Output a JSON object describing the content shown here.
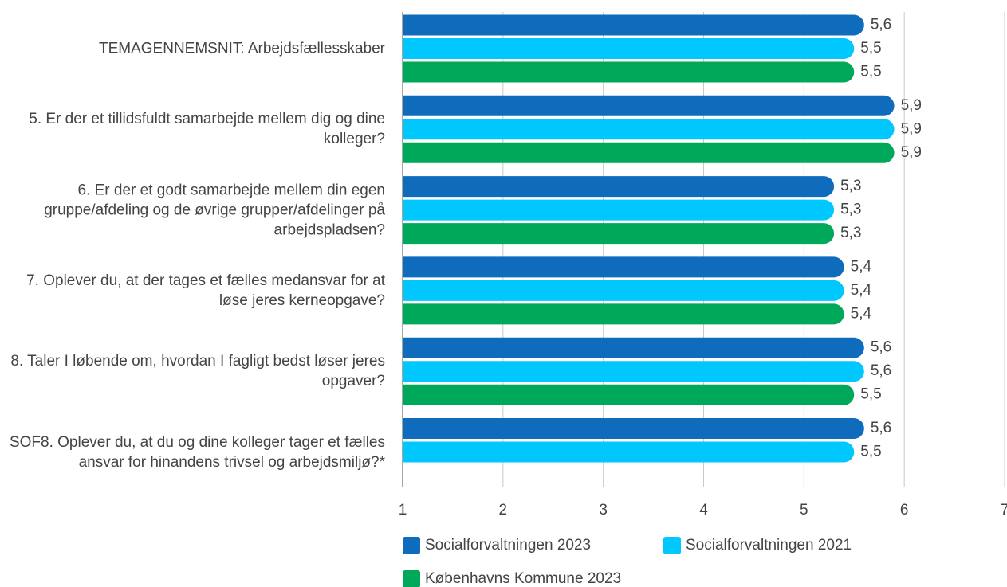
{
  "chart_data": {
    "type": "bar",
    "orientation": "horizontal",
    "categories": [
      "TEMAGENNEMSNIT: Arbejdsfællesskaber",
      "5. Er der et tillidsfuldt samarbejde mellem dig og dine kolleger?",
      "6. Er der et godt samarbejde mellem din egen gruppe/afdeling og de øvrige grupper/afdelinger på arbejdspladsen?",
      "7. Oplever du, at der tages et fælles medansvar for at løse jeres kerneopgave?",
      "8. Taler I løbende om, hvordan I fagligt bedst løser jeres opgaver?",
      "SOF8. Oplever du, at du og dine kolleger tager et fælles ansvar for hinandens trivsel og arbejdsmiljø?*"
    ],
    "series": [
      {
        "name": "Socialforvaltningen 2023",
        "color": "#0f6cbd",
        "values": [
          5.6,
          5.9,
          5.3,
          5.4,
          5.6,
          5.6
        ],
        "value_labels": [
          "5,6",
          "5,9",
          "5,3",
          "5,4",
          "5,6",
          "5,6"
        ]
      },
      {
        "name": "Socialforvaltningen 2021",
        "color": "#00c8ff",
        "values": [
          5.5,
          5.9,
          5.3,
          5.4,
          5.6,
          5.5
        ],
        "value_labels": [
          "5,5",
          "5,9",
          "5,3",
          "5,4",
          "5,6",
          "5,5"
        ]
      },
      {
        "name": "Københavns Kommune 2023",
        "color": "#00a859",
        "values": [
          5.5,
          5.9,
          5.3,
          5.4,
          5.5,
          null
        ],
        "value_labels": [
          "5,5",
          "5,9",
          "5,3",
          "5,4",
          "5,5",
          null
        ]
      }
    ],
    "xlim": [
      1,
      7
    ],
    "xticks": [
      1,
      2,
      3,
      4,
      5,
      6,
      7
    ],
    "grid": true
  }
}
